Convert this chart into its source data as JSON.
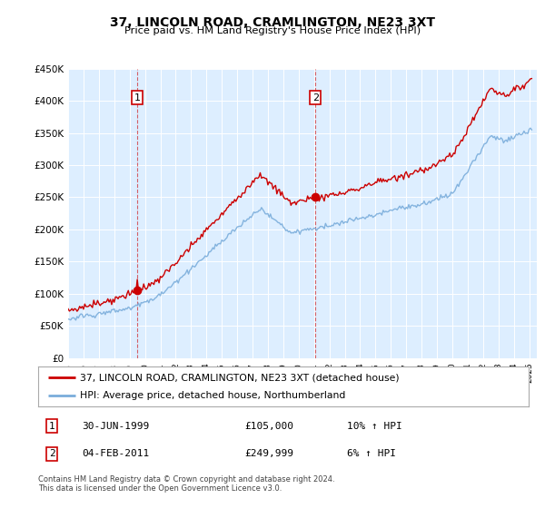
{
  "title": "37, LINCOLN ROAD, CRAMLINGTON, NE23 3XT",
  "subtitle": "Price paid vs. HM Land Registry's House Price Index (HPI)",
  "legend_line1": "37, LINCOLN ROAD, CRAMLINGTON, NE23 3XT (detached house)",
  "legend_line2": "HPI: Average price, detached house, Northumberland",
  "footnote": "Contains HM Land Registry data © Crown copyright and database right 2024.\nThis data is licensed under the Open Government Licence v3.0.",
  "sale1_date": "30-JUN-1999",
  "sale1_price": "£105,000",
  "sale1_hpi": "10% ↑ HPI",
  "sale2_date": "04-FEB-2011",
  "sale2_price": "£249,999",
  "sale2_hpi": "6% ↑ HPI",
  "line_color_red": "#cc0000",
  "line_color_blue": "#7aaddb",
  "background_color": "#ddeeff",
  "ylim": [
    0,
    450000
  ],
  "yticks": [
    0,
    50000,
    100000,
    150000,
    200000,
    250000,
    300000,
    350000,
    400000,
    450000
  ],
  "sale1_x": 1999.5,
  "sale2_x": 2011.09
}
